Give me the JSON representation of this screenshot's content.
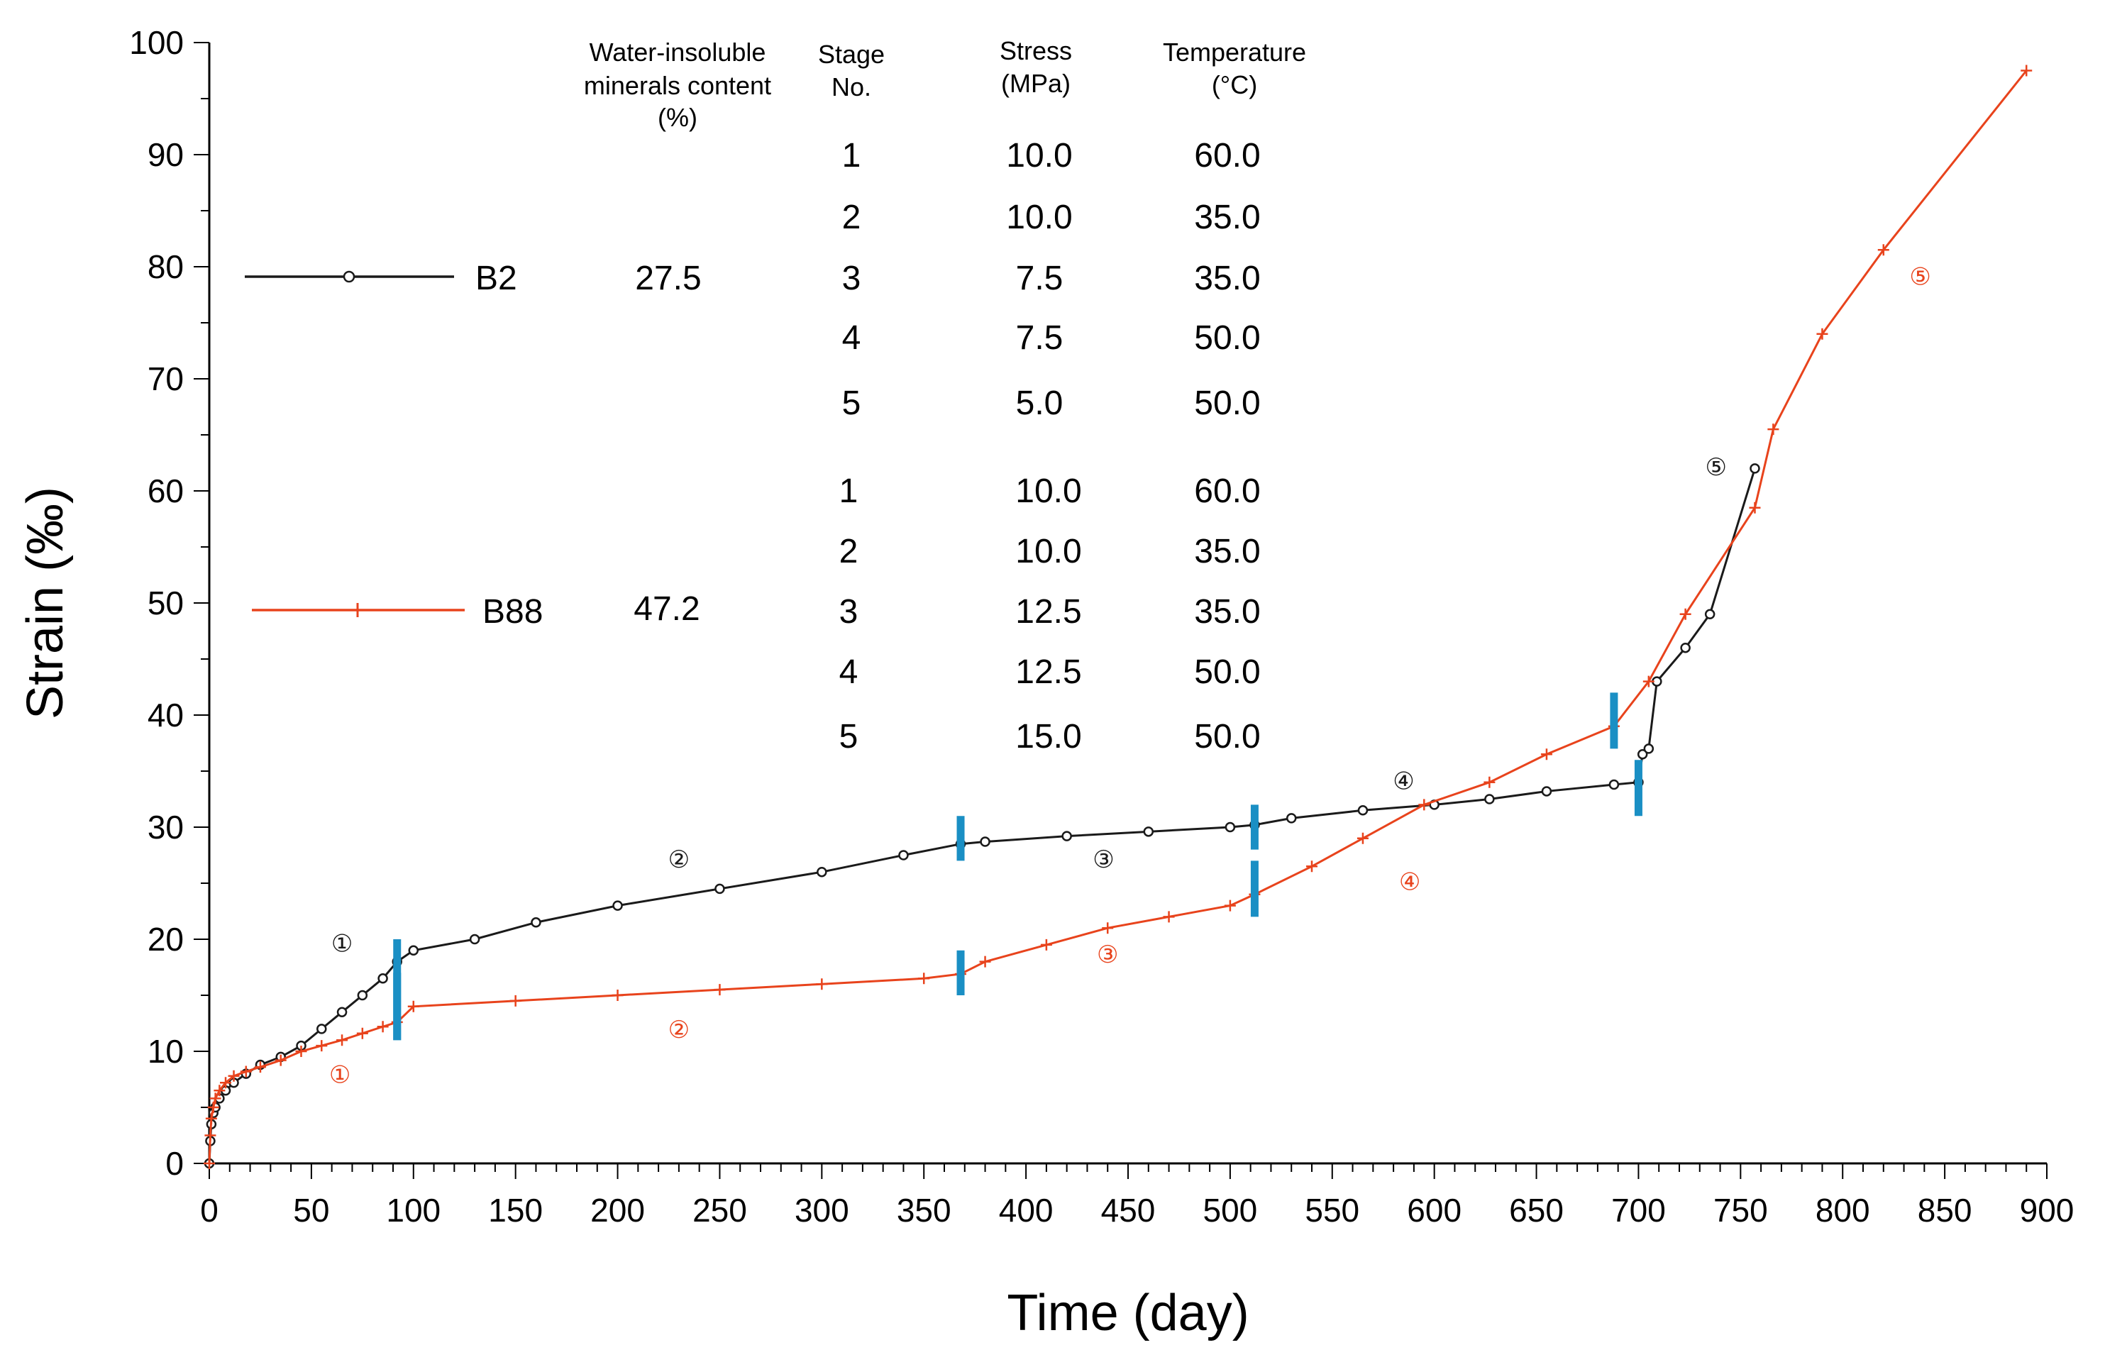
{
  "chart_data": {
    "type": "line",
    "xlabel": "Time (day)",
    "ylabel": "Strain (‰)",
    "xlim": [
      0,
      900
    ],
    "ylim": [
      0,
      100
    ],
    "xticks": [
      "0",
      "50",
      "100",
      "150",
      "200",
      "250",
      "300",
      "350",
      "400",
      "450",
      "500",
      "550",
      "600",
      "650",
      "700",
      "750",
      "800",
      "850",
      "900"
    ],
    "yticks": [
      "0",
      "10",
      "20",
      "30",
      "40",
      "50",
      "60",
      "70",
      "80",
      "90",
      "100"
    ],
    "table_headers": {
      "insoluble": [
        "Water-insoluble",
        "minerals content",
        "(%)"
      ],
      "stage": [
        "Stage",
        "No."
      ],
      "stress": [
        "Stress",
        "(MPa)"
      ],
      "temperature": [
        "Temperature",
        "(°C)"
      ]
    },
    "series": [
      {
        "name": "B2",
        "insoluble_content": "27.5",
        "color": "#1a1a1a",
        "marker": "circle",
        "stages": [
          {
            "no": "1",
            "stress": "10.0",
            "temperature": "60.0"
          },
          {
            "no": "2",
            "stress": "10.0",
            "temperature": "35.0"
          },
          {
            "no": "3",
            "stress": "7.5",
            "temperature": "35.0"
          },
          {
            "no": "4",
            "stress": "7.5",
            "temperature": "50.0"
          },
          {
            "no": "5",
            "stress": "5.0",
            "temperature": "50.0"
          }
        ],
        "x": [
          0,
          0.5,
          1,
          2,
          3,
          5,
          8,
          12,
          18,
          25,
          35,
          45,
          55,
          65,
          75,
          85,
          92,
          100,
          130,
          160,
          200,
          250,
          300,
          340,
          368,
          380,
          420,
          460,
          500,
          512,
          530,
          565,
          600,
          627,
          655,
          688,
          700,
          702,
          705,
          709,
          723,
          735,
          757
        ],
        "y": [
          0,
          2,
          3.5,
          4.5,
          5,
          5.8,
          6.5,
          7.2,
          8,
          8.8,
          9.5,
          10.5,
          12,
          13.5,
          15,
          16.5,
          18,
          19,
          20,
          21.5,
          23,
          24.5,
          26,
          27.5,
          28.5,
          28.7,
          29.2,
          29.6,
          30,
          30.2,
          30.8,
          31.5,
          32,
          32.5,
          33.2,
          33.8,
          34,
          36.5,
          37,
          43,
          46,
          49,
          62
        ],
        "stage_boundaries": [
          {
            "x": 92,
            "y_from": 11,
            "y_to": 20
          },
          {
            "x": 368,
            "y_from": 27,
            "y_to": 31
          },
          {
            "x": 512,
            "y_from": 28,
            "y_to": 32
          },
          {
            "x": 700,
            "y_from": 31,
            "y_to": 36
          }
        ],
        "stage_markers": [
          {
            "label": "①",
            "x": 65,
            "y": 19.5
          },
          {
            "label": "②",
            "x": 230,
            "y": 27
          },
          {
            "label": "③",
            "x": 438,
            "y": 27
          },
          {
            "label": "④",
            "x": 585,
            "y": 34
          },
          {
            "label": "⑤",
            "x": 738,
            "y": 62
          }
        ]
      },
      {
        "name": "B88",
        "insoluble_content": "47.2",
        "color": "#e8431c",
        "marker": "plus",
        "stages": [
          {
            "no": "1",
            "stress": "10.0",
            "temperature": "60.0"
          },
          {
            "no": "2",
            "stress": "10.0",
            "temperature": "35.0"
          },
          {
            "no": "3",
            "stress": "12.5",
            "temperature": "35.0"
          },
          {
            "no": "4",
            "stress": "12.5",
            "temperature": "50.0"
          },
          {
            "no": "5",
            "stress": "15.0",
            "temperature": "50.0"
          }
        ],
        "x": [
          0,
          0.5,
          1,
          2,
          3,
          5,
          8,
          12,
          18,
          25,
          35,
          45,
          55,
          65,
          75,
          85,
          92,
          100,
          150,
          200,
          250,
          300,
          350,
          368,
          380,
          410,
          440,
          470,
          500,
          512,
          540,
          565,
          595,
          627,
          655,
          688,
          705,
          723,
          757,
          766,
          790,
          820,
          890
        ],
        "y": [
          0,
          2.5,
          4,
          5,
          5.8,
          6.5,
          7.2,
          7.8,
          8.2,
          8.6,
          9.2,
          10,
          10.5,
          11,
          11.6,
          12.2,
          12.6,
          14,
          14.5,
          15,
          15.5,
          16,
          16.5,
          16.9,
          18,
          19.5,
          21,
          22,
          23,
          24,
          26.5,
          29,
          32,
          34,
          36.5,
          39,
          43,
          49,
          58.5,
          65.5,
          74,
          81.5,
          97.5
        ],
        "stage_boundaries": [
          {
            "x": 92,
            "y_from": 11,
            "y_to": 17
          },
          {
            "x": 368,
            "y_from": 15,
            "y_to": 19
          },
          {
            "x": 512,
            "y_from": 22,
            "y_to": 27
          },
          {
            "x": 688,
            "y_from": 37,
            "y_to": 42
          }
        ],
        "stage_markers": [
          {
            "label": "①",
            "x": 64,
            "y": 7.8
          },
          {
            "label": "②",
            "x": 230,
            "y": 11.8
          },
          {
            "label": "③",
            "x": 440,
            "y": 18.5
          },
          {
            "label": "④",
            "x": 588,
            "y": 25
          },
          {
            "label": "⑤",
            "x": 838,
            "y": 79
          }
        ]
      }
    ],
    "stage_boundary_color": "#1a8fc4"
  }
}
